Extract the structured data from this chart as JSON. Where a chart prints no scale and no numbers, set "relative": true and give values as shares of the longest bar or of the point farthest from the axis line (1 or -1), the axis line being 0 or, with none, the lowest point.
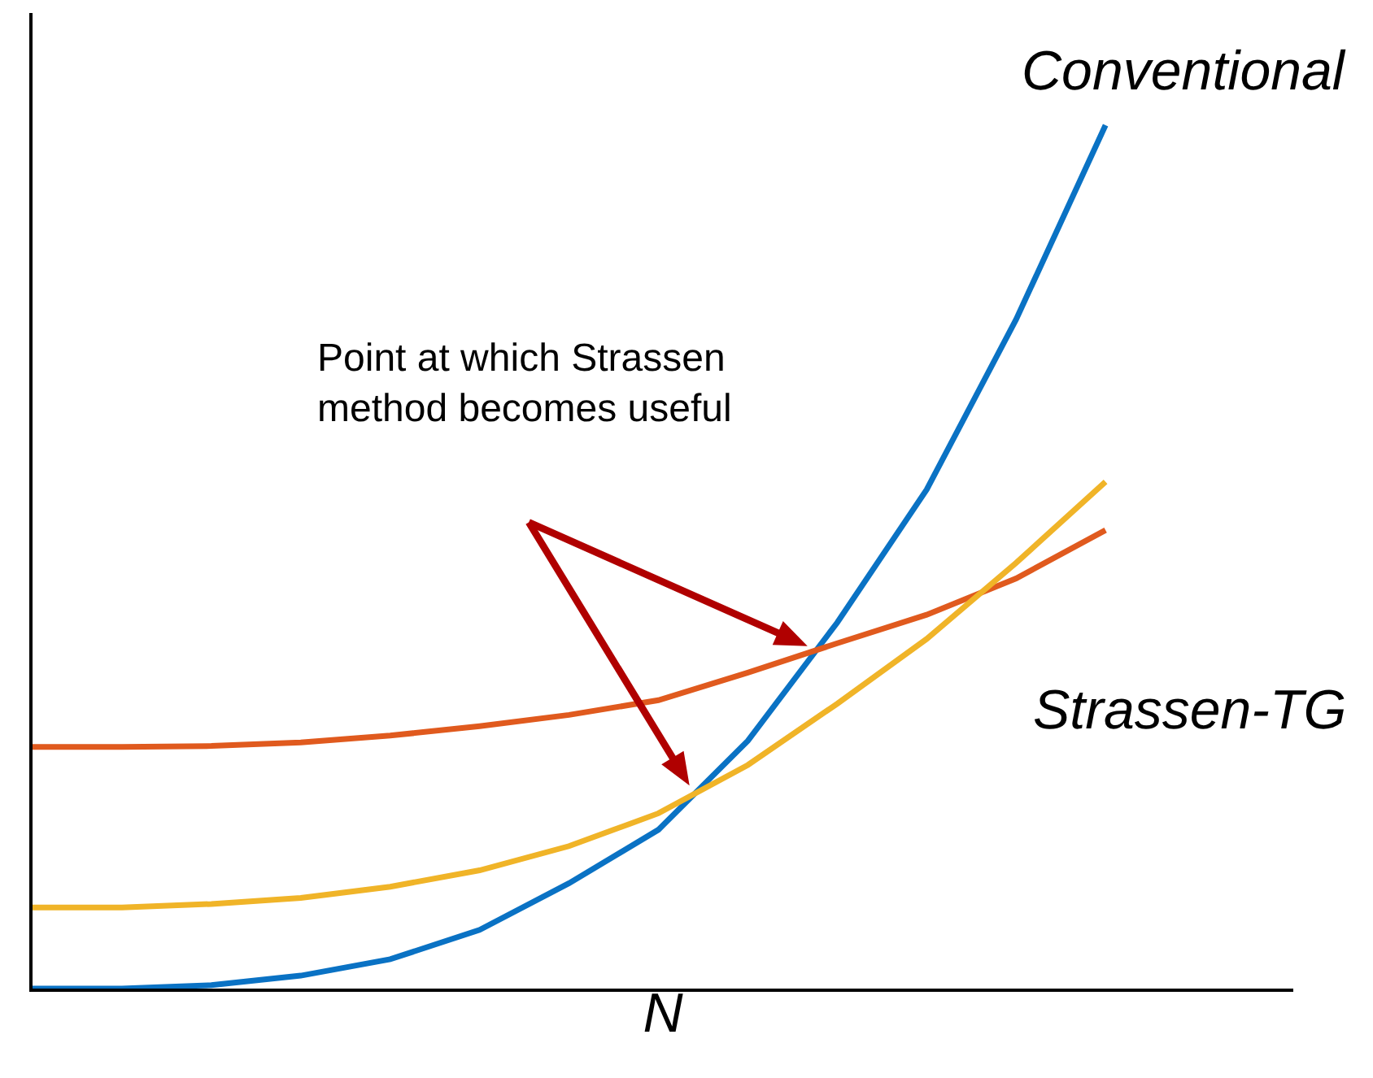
{
  "chart_data": {
    "type": "line",
    "relative": true,
    "xlabel": "N",
    "categories": [
      null,
      null,
      null,
      null,
      null,
      null,
      null,
      null,
      null,
      null,
      null,
      null,
      null,
      null,
      null
    ],
    "series": [
      {
        "name": "Conventional",
        "color": "#0a72c4",
        "values": [
          0,
          0,
          0.004,
          0.015,
          0.034,
          0.068,
          0.122,
          0.184,
          0.287,
          0.424,
          0.578,
          0.775,
          1,
          null,
          null
        ]
      },
      {
        "color": "#e05a1e",
        "values": [
          0.28,
          0.28,
          0.281,
          0.285,
          0.293,
          0.304,
          0.317,
          0.334,
          0.366,
          0.4,
          0.433,
          0.475,
          0.531,
          null,
          null
        ]
      },
      {
        "name": "Strassen-TG",
        "color": "#f0b428",
        "values": [
          0.094,
          0.094,
          0.098,
          0.105,
          0.118,
          0.137,
          0.165,
          0.203,
          0.259,
          0.33,
          0.405,
          0.493,
          0.587,
          null,
          null
        ]
      }
    ],
    "annotations": [
      "Point at which Strassen\nmethod becomes useful"
    ],
    "legend": false,
    "marker": "none",
    "line_style": "solid"
  }
}
